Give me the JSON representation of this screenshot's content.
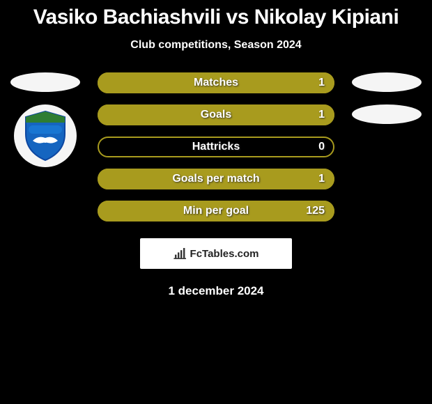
{
  "title": "Vasiko Bachiashvili vs Nikolay Kipiani",
  "subtitle": "Club competitions, Season 2024",
  "date": "1 december 2024",
  "attribution": "FcTables.com",
  "colors": {
    "background": "#000000",
    "bar_outline": "#a89b1e",
    "bar_fill": "#a89b1e",
    "ellipse": "#f5f5f5",
    "text": "#ffffff",
    "title_fontsize": 30,
    "subtitle_fontsize": 16,
    "label_fontsize": 16
  },
  "left_player": {
    "ellipses": 1,
    "has_badge": true,
    "badge_colors": {
      "shield_top": "#2e7d32",
      "shield_body": "#1565c0",
      "banner": "#1976d2",
      "wings": "#ffffff"
    }
  },
  "right_player": {
    "ellipses": 2,
    "has_badge": false
  },
  "stats": [
    {
      "label": "Matches",
      "value": "1",
      "fill_pct": 100
    },
    {
      "label": "Goals",
      "value": "1",
      "fill_pct": 100
    },
    {
      "label": "Hattricks",
      "value": "0",
      "fill_pct": 0
    },
    {
      "label": "Goals per match",
      "value": "1",
      "fill_pct": 100
    },
    {
      "label": "Min per goal",
      "value": "125",
      "fill_pct": 100
    }
  ]
}
